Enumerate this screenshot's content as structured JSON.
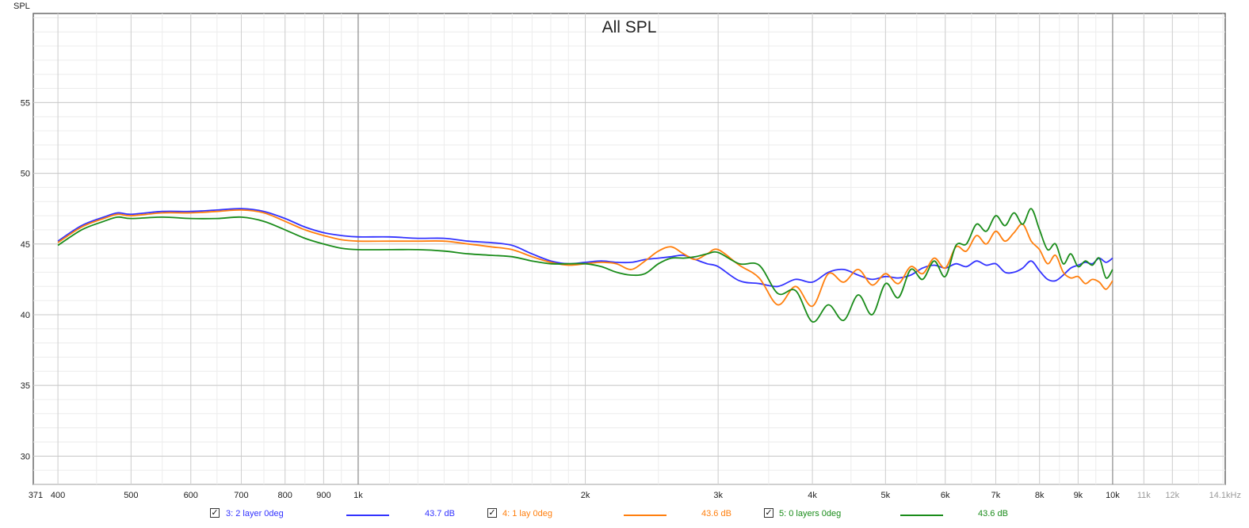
{
  "chart_data": {
    "type": "line",
    "title": "All SPL",
    "ylabel": "SPL",
    "xlabel": "",
    "x_scale": "log",
    "xlim": [
      371,
      14100
    ],
    "ylim": [
      28,
      61.3
    ],
    "grid": true,
    "x_ticks": [
      {
        "value": 371,
        "label": "371",
        "major": false
      },
      {
        "value": 400,
        "label": "400",
        "major": false
      },
      {
        "value": 500,
        "label": "500",
        "major": false
      },
      {
        "value": 600,
        "label": "600",
        "major": false
      },
      {
        "value": 700,
        "label": "700",
        "major": false
      },
      {
        "value": 800,
        "label": "800",
        "major": false
      },
      {
        "value": 900,
        "label": "900",
        "major": false
      },
      {
        "value": 1000,
        "label": "1k",
        "major": true
      },
      {
        "value": 2000,
        "label": "2k",
        "major": false
      },
      {
        "value": 3000,
        "label": "3k",
        "major": false
      },
      {
        "value": 4000,
        "label": "4k",
        "major": false
      },
      {
        "value": 5000,
        "label": "5k",
        "major": false
      },
      {
        "value": 6000,
        "label": "6k",
        "major": false
      },
      {
        "value": 7000,
        "label": "7k",
        "major": false
      },
      {
        "value": 8000,
        "label": "8k",
        "major": false
      },
      {
        "value": 9000,
        "label": "9k",
        "major": false
      },
      {
        "value": 10000,
        "label": "10k",
        "major": true
      },
      {
        "value": 11000,
        "label": "11k",
        "major": false
      },
      {
        "value": 12000,
        "label": "12k",
        "major": false
      },
      {
        "value": 14100,
        "label": "14.1kHz",
        "major": false
      }
    ],
    "y_ticks": [
      30,
      35,
      40,
      45,
      50,
      55
    ],
    "series": [
      {
        "name": "3: 2 layer 0deg",
        "color": "#3333ff",
        "x": [
          400,
          430,
          460,
          480,
          500,
          550,
          600,
          650,
          700,
          750,
          800,
          850,
          900,
          950,
          1000,
          1100,
          1200,
          1300,
          1400,
          1500,
          1600,
          1700,
          1800,
          1900,
          2000,
          2100,
          2200,
          2300,
          2400,
          2500,
          2600,
          2700,
          2800,
          2900,
          3000,
          3200,
          3400,
          3600,
          3800,
          4000,
          4200,
          4400,
          4600,
          4800,
          5000,
          5200,
          5400,
          5600,
          5800,
          6000,
          6200,
          6400,
          6600,
          6800,
          7000,
          7200,
          7400,
          7600,
          7800,
          8000,
          8200,
          8400,
          8600,
          8800,
          9000,
          9200,
          9400,
          9600,
          9800,
          10000
        ],
        "y": [
          45.2,
          46.3,
          46.9,
          47.2,
          47.1,
          47.3,
          47.3,
          47.4,
          47.5,
          47.3,
          46.8,
          46.2,
          45.8,
          45.6,
          45.5,
          45.5,
          45.4,
          45.4,
          45.2,
          45.1,
          44.9,
          44.3,
          43.8,
          43.6,
          43.7,
          43.8,
          43.7,
          43.7,
          43.9,
          44.0,
          44.1,
          44.2,
          43.9,
          43.6,
          43.4,
          42.4,
          42.2,
          42.0,
          42.5,
          42.3,
          43.0,
          43.2,
          42.8,
          42.5,
          42.7,
          42.6,
          42.8,
          43.3,
          43.5,
          43.3,
          43.6,
          43.4,
          43.8,
          43.5,
          43.6,
          43.0,
          43.0,
          43.3,
          43.8,
          43.1,
          42.5,
          42.4,
          42.8,
          43.3,
          43.5,
          43.7,
          43.6,
          44.0,
          43.7,
          44.0
        ]
      },
      {
        "name": "4: 1 lay 0deg",
        "color": "#ff7f0e",
        "x": [
          400,
          430,
          460,
          480,
          500,
          550,
          600,
          650,
          700,
          750,
          800,
          850,
          900,
          950,
          1000,
          1100,
          1200,
          1300,
          1400,
          1500,
          1600,
          1700,
          1800,
          1900,
          2000,
          2100,
          2200,
          2300,
          2400,
          2500,
          2600,
          2700,
          2800,
          2900,
          3000,
          3200,
          3400,
          3600,
          3800,
          4000,
          4200,
          4400,
          4600,
          4800,
          5000,
          5200,
          5400,
          5600,
          5800,
          6000,
          6200,
          6400,
          6600,
          6800,
          7000,
          7200,
          7400,
          7600,
          7800,
          8000,
          8200,
          8400,
          8600,
          8800,
          9000,
          9200,
          9400,
          9600,
          9800,
          10000
        ],
        "y": [
          45.1,
          46.2,
          46.8,
          47.1,
          47.0,
          47.2,
          47.2,
          47.3,
          47.4,
          47.2,
          46.6,
          46.0,
          45.6,
          45.3,
          45.2,
          45.2,
          45.2,
          45.2,
          45.0,
          44.8,
          44.6,
          44.1,
          43.7,
          43.5,
          43.6,
          43.7,
          43.6,
          43.2,
          43.8,
          44.5,
          44.8,
          44.3,
          43.9,
          44.3,
          44.6,
          43.5,
          42.6,
          40.7,
          42.0,
          40.6,
          42.9,
          42.3,
          43.2,
          42.1,
          42.9,
          42.2,
          43.4,
          42.9,
          44.0,
          43.3,
          44.8,
          44.5,
          45.6,
          45.0,
          45.9,
          45.2,
          45.8,
          46.4,
          45.2,
          44.6,
          43.6,
          44.2,
          43.0,
          42.6,
          42.7,
          42.2,
          42.5,
          42.3,
          41.8,
          42.4
        ]
      },
      {
        "name": "5: 0 layers 0deg",
        "color": "#1a8c1a",
        "x": [
          400,
          430,
          460,
          480,
          500,
          550,
          600,
          650,
          700,
          750,
          800,
          850,
          900,
          950,
          1000,
          1100,
          1200,
          1300,
          1400,
          1500,
          1600,
          1700,
          1800,
          1900,
          2000,
          2100,
          2200,
          2300,
          2400,
          2500,
          2600,
          2700,
          2800,
          2900,
          3000,
          3200,
          3400,
          3600,
          3800,
          4000,
          4200,
          4400,
          4600,
          4800,
          5000,
          5200,
          5400,
          5600,
          5800,
          6000,
          6200,
          6400,
          6600,
          6800,
          7000,
          7200,
          7400,
          7600,
          7800,
          8000,
          8200,
          8400,
          8600,
          8800,
          9000,
          9200,
          9400,
          9600,
          9800,
          10000
        ],
        "y": [
          44.9,
          46.0,
          46.6,
          46.9,
          46.8,
          46.9,
          46.8,
          46.8,
          46.9,
          46.6,
          46.0,
          45.4,
          45.0,
          44.7,
          44.6,
          44.6,
          44.6,
          44.5,
          44.3,
          44.2,
          44.1,
          43.8,
          43.6,
          43.6,
          43.6,
          43.4,
          43.0,
          42.8,
          42.9,
          43.6,
          44.0,
          44.0,
          44.1,
          44.3,
          44.4,
          43.6,
          43.5,
          41.5,
          41.7,
          39.5,
          40.7,
          39.6,
          41.4,
          40.0,
          42.2,
          41.2,
          43.2,
          42.5,
          43.8,
          42.7,
          44.9,
          45.0,
          46.4,
          45.9,
          47.0,
          46.3,
          47.2,
          46.4,
          47.5,
          46.0,
          44.6,
          45.0,
          43.6,
          44.3,
          43.4,
          43.8,
          43.5,
          44.0,
          42.6,
          43.2
        ]
      }
    ],
    "legend": [
      {
        "label": "3: 2 layer 0deg",
        "value": "43.7 dB",
        "checked": true,
        "color": "#3333ff"
      },
      {
        "label": "4: 1 lay 0deg",
        "value": "43.6 dB",
        "checked": true,
        "color": "#ff7f0e"
      },
      {
        "label": "5: 0 layers 0deg",
        "value": "43.6 dB",
        "checked": true,
        "color": "#1a8c1a"
      }
    ]
  }
}
